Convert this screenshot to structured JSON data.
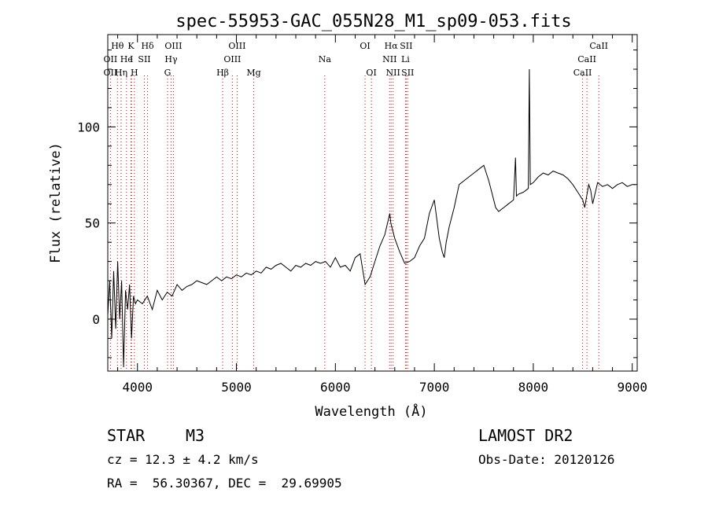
{
  "chart_data": {
    "type": "line",
    "title": "spec-55953-GAC_055N28_M1_sp09-053.fits",
    "xlabel": "Wavelength (Å)",
    "ylabel": "Flux (relative)",
    "xlim": [
      3700,
      9050
    ],
    "ylim": [
      -27,
      148
    ],
    "xticks": [
      4000,
      5000,
      6000,
      7000,
      8000,
      9000
    ],
    "yticks": [
      0,
      50,
      100
    ],
    "grid": false,
    "line_color": "#000000",
    "marker_color": "#cc0000",
    "series": [
      {
        "x": [
          3700,
          3720,
          3740,
          3760,
          3780,
          3800,
          3820,
          3840,
          3860,
          3880,
          3900,
          3920,
          3940,
          3960,
          3980,
          4000,
          4050,
          4100,
          4150,
          4200,
          4250,
          4300,
          4350,
          4400,
          4450,
          4500,
          4550,
          4600,
          4650,
          4700,
          4750,
          4800,
          4850,
          4900,
          4950,
          5000,
          5050,
          5100,
          5150,
          5200,
          5250,
          5300,
          5350,
          5400,
          5450,
          5500,
          5550,
          5600,
          5650,
          5700,
          5750,
          5800,
          5850,
          5900,
          5950,
          6000,
          6050,
          6100,
          6150,
          6200,
          6250,
          6300,
          6350,
          6400,
          6450,
          6500,
          6550,
          6560,
          6600,
          6650,
          6700,
          6750,
          6800,
          6850,
          6900,
          6950,
          7000,
          7050,
          7080,
          7100,
          7120,
          7150,
          7200,
          7250,
          7300,
          7350,
          7400,
          7450,
          7500,
          7550,
          7580,
          7600,
          7620,
          7650,
          7700,
          7750,
          7800,
          7820,
          7830,
          7850,
          7900,
          7950,
          7960,
          7970,
          8000,
          8050,
          8100,
          8150,
          8200,
          8250,
          8300,
          8350,
          8400,
          8450,
          8500,
          8520,
          8540,
          8560,
          8580,
          8600,
          8650,
          8700,
          8750,
          8800,
          8850,
          8900,
          8950,
          9000,
          9030
        ],
        "y": [
          2,
          20,
          -10,
          25,
          -5,
          30,
          0,
          20,
          -25,
          15,
          5,
          18,
          -10,
          12,
          8,
          10,
          8,
          12,
          5,
          15,
          10,
          14,
          12,
          18,
          15,
          17,
          18,
          20,
          19,
          18,
          20,
          22,
          20,
          22,
          21,
          23,
          22,
          24,
          23,
          25,
          24,
          27,
          26,
          28,
          29,
          27,
          25,
          28,
          27,
          29,
          28,
          30,
          29,
          30,
          27,
          32,
          27,
          28,
          25,
          32,
          34,
          18,
          22,
          30,
          38,
          44,
          55,
          50,
          42,
          35,
          29,
          30,
          32,
          38,
          42,
          55,
          62,
          42,
          35,
          32,
          40,
          48,
          58,
          70,
          72,
          74,
          76,
          78,
          80,
          72,
          66,
          62,
          58,
          56,
          58,
          60,
          62,
          84,
          64,
          65,
          66,
          68,
          130,
          70,
          71,
          74,
          76,
          75,
          77,
          76,
          75,
          73,
          70,
          66,
          62,
          58,
          64,
          70,
          67,
          60,
          71,
          69,
          70,
          68,
          70,
          71,
          69,
          70,
          70
        ]
      }
    ],
    "line_markers": [
      {
        "label": "Hθ",
        "wavelength": 3798,
        "row": 0
      },
      {
        "label": "K",
        "wavelength": 3934,
        "row": 0
      },
      {
        "label": "Hδ",
        "wavelength": 4102,
        "row": 0
      },
      {
        "label": "OIII",
        "wavelength": 4363,
        "row": 0
      },
      {
        "label": "OIII",
        "wavelength": 5007,
        "row": 0
      },
      {
        "label": "OI",
        "wavelength": 6300,
        "row": 0
      },
      {
        "label": "Hα",
        "wavelength": 6563,
        "row": 0
      },
      {
        "label": "SII",
        "wavelength": 6716,
        "row": 0
      },
      {
        "label": "CaII",
        "wavelength": 8662,
        "row": 0
      },
      {
        "label": "OII",
        "wavelength": 3727,
        "row": 1
      },
      {
        "label": "He",
        "wavelength": 3889,
        "row": 1
      },
      {
        "label": "I",
        "wavelength": 3940,
        "row": 1
      },
      {
        "label": "SII",
        "wavelength": 4070,
        "row": 1
      },
      {
        "label": "Hγ",
        "wavelength": 4340,
        "row": 1
      },
      {
        "label": "OIII",
        "wavelength": 4959,
        "row": 1
      },
      {
        "label": "Na",
        "wavelength": 5893,
        "row": 1
      },
      {
        "label": "NII",
        "wavelength": 6548,
        "row": 1
      },
      {
        "label": "Li",
        "wavelength": 6708,
        "row": 1
      },
      {
        "label": "CaII",
        "wavelength": 8542,
        "row": 1
      },
      {
        "label": "OII",
        "wavelength": 3727,
        "row": 2
      },
      {
        "label": "Hη",
        "wavelength": 3835,
        "row": 2
      },
      {
        "label": "H",
        "wavelength": 3969,
        "row": 2
      },
      {
        "label": "G",
        "wavelength": 4304,
        "row": 2
      },
      {
        "label": "Hβ",
        "wavelength": 4861,
        "row": 2
      },
      {
        "label": "Mg",
        "wavelength": 5175,
        "row": 2
      },
      {
        "label": "OI",
        "wavelength": 6364,
        "row": 2
      },
      {
        "label": "NII",
        "wavelength": 6583,
        "row": 2
      },
      {
        "label": "SII",
        "wavelength": 6731,
        "row": 2
      },
      {
        "label": "CaII",
        "wavelength": 8498,
        "row": 2
      }
    ]
  },
  "info": {
    "class": "STAR",
    "subclass": "M3",
    "survey": "LAMOST DR2",
    "cz": "cz = 12.3 ± 4.2 km/s",
    "obs_date": "Obs-Date: 20120126",
    "coords": "RA =  56.30367, DEC =  29.69905"
  }
}
